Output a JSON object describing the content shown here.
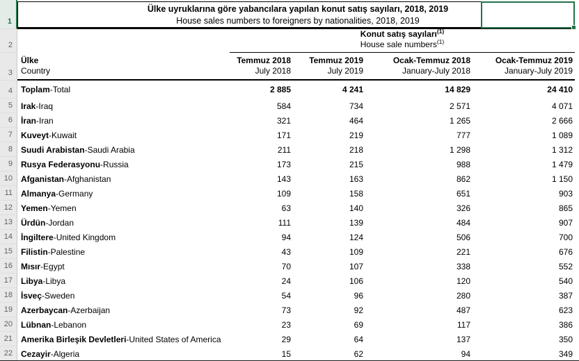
{
  "sheet": {
    "labels": {
      "sep": " - "
    },
    "selection": {
      "color": "#217346"
    },
    "title": {
      "row_num": "1",
      "tr": "Ülke uyruklarına göre yabancılara yapılan konut satış sayıları, 2018, 2019",
      "en": "House sales numbers to foreigners by nationalities, 2018, 2019"
    },
    "group_header": {
      "row_num": "2",
      "tr": "Konut satış sayıları",
      "en": "House sale numbers",
      "footnote": "(1)"
    },
    "col_header": {
      "row_num": "3",
      "country_tr": "Ülke",
      "country_en": "Country",
      "cols": [
        {
          "tr": "Temmuz 2018",
          "en": "July 2018"
        },
        {
          "tr": "Temmuz 2019",
          "en": "July 2019"
        },
        {
          "tr": "Ocak-Temmuz 2018",
          "en": "January-July 2018"
        },
        {
          "tr": "Ocak-Temmuz 2019",
          "en": "January-July 2019"
        }
      ]
    },
    "total": {
      "row_num": "4",
      "tr": "Toplam",
      "en": "Total",
      "values": [
        "2 885",
        "4 241",
        "14 829",
        "24 410"
      ]
    },
    "rows": [
      {
        "row_num": "5",
        "tr": "Irak",
        "en": "Iraq",
        "values": [
          "584",
          "734",
          "2 571",
          "4 071"
        ]
      },
      {
        "row_num": "6",
        "tr": "İran",
        "en": "Iran",
        "values": [
          "321",
          "464",
          "1 265",
          "2 666"
        ]
      },
      {
        "row_num": "7",
        "tr": "Kuveyt",
        "en": "Kuwait",
        "values": [
          "171",
          "219",
          "777",
          "1 089"
        ]
      },
      {
        "row_num": "8",
        "tr": "Suudi Arabistan",
        "en": "Saudi Arabia",
        "values": [
          "211",
          "218",
          "1 298",
          "1 312"
        ]
      },
      {
        "row_num": "9",
        "tr": "Rusya Federasyonu",
        "en": "Russia",
        "values": [
          "173",
          "215",
          "988",
          "1 479"
        ]
      },
      {
        "row_num": "10",
        "tr": "Afganistan",
        "en": "Afghanistan",
        "values": [
          "143",
          "163",
          "862",
          "1 150"
        ]
      },
      {
        "row_num": "11",
        "tr": "Almanya",
        "en": "Germany",
        "values": [
          "109",
          "158",
          "651",
          "903"
        ]
      },
      {
        "row_num": "12",
        "tr": "Yemen",
        "en": "Yemen",
        "values": [
          "63",
          "140",
          "326",
          "865"
        ]
      },
      {
        "row_num": "13",
        "tr": "Ürdün",
        "en": "Jordan",
        "values": [
          "111",
          "139",
          "484",
          "907"
        ]
      },
      {
        "row_num": "14",
        "tr": "İngiltere",
        "en": "United Kingdom",
        "values": [
          "94",
          "124",
          "506",
          "700"
        ]
      },
      {
        "row_num": "15",
        "tr": "Filistin",
        "en": "Palestine",
        "values": [
          "43",
          "109",
          "221",
          "676"
        ]
      },
      {
        "row_num": "16",
        "tr": "Mısır",
        "en": "Egypt",
        "values": [
          "70",
          "107",
          "338",
          "552"
        ]
      },
      {
        "row_num": "17",
        "tr": "Libya",
        "en": "Libya",
        "values": [
          "24",
          "106",
          "120",
          "540"
        ]
      },
      {
        "row_num": "18",
        "tr": "İsveç",
        "en": "Sweden",
        "values": [
          "54",
          "96",
          "280",
          "387"
        ]
      },
      {
        "row_num": "19",
        "tr": "Azerbaycan",
        "en": "Azerbaijan",
        "values": [
          "73",
          "92",
          "487",
          "623"
        ]
      },
      {
        "row_num": "20",
        "tr": "Lübnan",
        "en": "Lebanon",
        "values": [
          "23",
          "69",
          "117",
          "386"
        ]
      },
      {
        "row_num": "21",
        "tr": "Amerika Birleşik Devletleri",
        "en": "United States of America",
        "values": [
          "29",
          "64",
          "137",
          "350"
        ]
      },
      {
        "row_num": "22",
        "tr": "Cezayir",
        "en": "Algeria",
        "values": [
          "15",
          "62",
          "94",
          "349"
        ]
      }
    ]
  }
}
